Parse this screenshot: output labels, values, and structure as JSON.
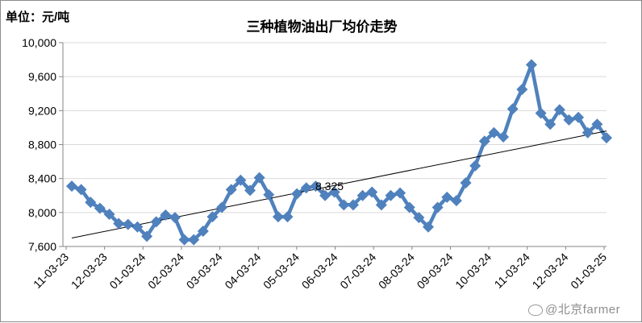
{
  "unit_label": "单位：元/吨",
  "title": "三种植物油出厂均价走势",
  "watermark": "@北京farmer",
  "colors": {
    "series": "#4f81bd",
    "trendline": "#000000",
    "axis": "#868686",
    "grid": "#d9d9d9"
  },
  "chart_data": {
    "type": "line",
    "title": "三种植物油出厂均价走势",
    "ylabel": "单位：元/吨",
    "ylim": [
      7600,
      10000
    ],
    "yticks": [
      7600,
      8000,
      8400,
      8800,
      9200,
      9600,
      10000
    ],
    "ytick_labels": [
      "7,600",
      "8,000",
      "8,400",
      "8,800",
      "9,200",
      "9,600",
      "10,000"
    ],
    "xtick_labels": [
      "11-03-23",
      "12-03-23",
      "01-03-24",
      "02-03-24",
      "03-03-24",
      "04-03-24",
      "05-03-24",
      "06-03-24",
      "07-03-24",
      "08-03-24",
      "09-03-24",
      "10-03-24",
      "11-03-24",
      "12-03-24",
      "01-03-25"
    ],
    "grid": true,
    "legend": "none",
    "marker": "diamond",
    "series": [
      {
        "values": [
          8310,
          8270,
          8120,
          8050,
          7980,
          7870,
          7860,
          7830,
          7720,
          7890,
          7970,
          7940,
          7680,
          7680,
          7780,
          7950,
          8060,
          8270,
          8380,
          8260,
          8410,
          8210,
          7950,
          7950,
          8220,
          8290,
          8310,
          8200,
          8240,
          8090,
          8090,
          8200,
          8240,
          8090,
          8200,
          8230,
          8060,
          7940,
          7830,
          8060,
          8180,
          8140,
          8350,
          8550,
          8840,
          8940,
          8890,
          9220,
          9450,
          9740,
          9170,
          9040,
          9210,
          9090,
          9120,
          8940,
          9040,
          8880
        ]
      }
    ],
    "trendline": {
      "type": "linear",
      "start": 7700,
      "end": 8960
    },
    "annotations": [
      {
        "text": "8,325"
      }
    ]
  }
}
